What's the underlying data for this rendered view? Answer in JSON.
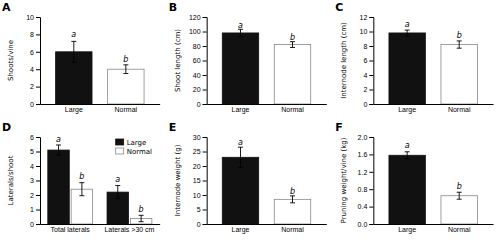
{
  "chart_data": [
    {
      "type": "bar",
      "title": "A",
      "ylabel": "Shoots/vine",
      "categories": [
        "Large",
        "Normal"
      ],
      "values": [
        6.0,
        4.0
      ],
      "errors": [
        1.2,
        0.5
      ],
      "colors": [
        "#111111",
        "#ffffff"
      ],
      "ylim": [
        0,
        10
      ],
      "yticks": [
        0,
        2,
        4,
        6,
        8,
        10
      ],
      "annotations": [
        {
          "text": "a",
          "category": "Large",
          "y": 7.6
        },
        {
          "text": "b",
          "category": "Normal",
          "y": 4.7
        }
      ]
    },
    {
      "type": "bar",
      "title": "B",
      "ylabel": "Shoot length (cm)",
      "categories": [
        "Large",
        "Normal"
      ],
      "values": [
        98.0,
        82.0
      ],
      "errors": [
        5.0,
        4.0
      ],
      "colors": [
        "#111111",
        "#ffffff"
      ],
      "ylim": [
        0,
        120
      ],
      "yticks": [
        0,
        20,
        40,
        60,
        80,
        100,
        120
      ],
      "annotations": [
        {
          "text": "a",
          "category": "Large",
          "y": 104
        },
        {
          "text": "b",
          "category": "Normal",
          "y": 87
        }
      ]
    },
    {
      "type": "bar",
      "title": "C",
      "ylabel": "Internode length (cm)",
      "categories": [
        "Large",
        "Normal"
      ],
      "values": [
        9.8,
        8.2
      ],
      "errors": [
        0.4,
        0.5
      ],
      "colors": [
        "#111111",
        "#ffffff"
      ],
      "ylim": [
        0,
        12
      ],
      "yticks": [
        0,
        2,
        4,
        6,
        8,
        10,
        12
      ],
      "annotations": [
        {
          "text": "a",
          "category": "Large",
          "y": 10.5
        },
        {
          "text": "b",
          "category": "Normal",
          "y": 9.0
        }
      ]
    },
    {
      "type": "bar",
      "title": "D",
      "ylabel": "Laterals/shoot",
      "categories": [
        "Total laterals",
        "Laterals >30 cm"
      ],
      "series": [
        {
          "name": "Large",
          "color": "#111111",
          "values": [
            5.1,
            2.2
          ],
          "errors": [
            0.35,
            0.45
          ]
        },
        {
          "name": "Normal",
          "color": "#ffffff",
          "values": [
            2.4,
            0.38
          ],
          "errors": [
            0.45,
            0.22
          ]
        }
      ],
      "legend": "upper right",
      "ylim": [
        0,
        6
      ],
      "yticks": [
        0,
        1,
        2,
        3,
        4,
        5,
        6
      ],
      "annotations": [
        {
          "text": "a",
          "category": "Total laterals",
          "series": "Large",
          "y": 5.6
        },
        {
          "text": "b",
          "category": "Total laterals",
          "series": "Normal",
          "y": 3.05
        },
        {
          "text": "a",
          "category": "Laterals >30 cm",
          "series": "Large",
          "y": 2.8
        },
        {
          "text": "b",
          "category": "Laterals >30 cm",
          "series": "Normal",
          "y": 0.75
        }
      ]
    },
    {
      "type": "bar",
      "title": "E",
      "ylabel": "Internode weight (g)",
      "categories": [
        "Large",
        "Normal"
      ],
      "values": [
        23.0,
        8.5
      ],
      "errors": [
        3.5,
        1.2
      ],
      "colors": [
        "#111111",
        "#ffffff"
      ],
      "ylim": [
        0,
        30
      ],
      "yticks": [
        0,
        5,
        10,
        15,
        20,
        25,
        30
      ],
      "annotations": [
        {
          "text": "a",
          "category": "Large",
          "y": 27.0
        },
        {
          "text": "b",
          "category": "Normal",
          "y": 10.0
        }
      ]
    },
    {
      "type": "bar",
      "title": "F",
      "ylabel": "Pruning weight/vine (kg)",
      "categories": [
        "Large",
        "Normal"
      ],
      "values": [
        1.58,
        0.65
      ],
      "errors": [
        0.08,
        0.08
      ],
      "colors": [
        "#111111",
        "#ffffff"
      ],
      "ylim": [
        0,
        2
      ],
      "yticks": [
        {
          "value": 0,
          "label": "0.0"
        },
        0.4,
        0.8,
        1.2,
        1.6,
        {
          "value": 2.0,
          "label": "2.0"
        }
      ],
      "annotations": [
        {
          "text": "a",
          "category": "Large",
          "y": 1.72
        },
        {
          "text": "b",
          "category": "Normal",
          "y": 0.78
        }
      ]
    }
  ]
}
